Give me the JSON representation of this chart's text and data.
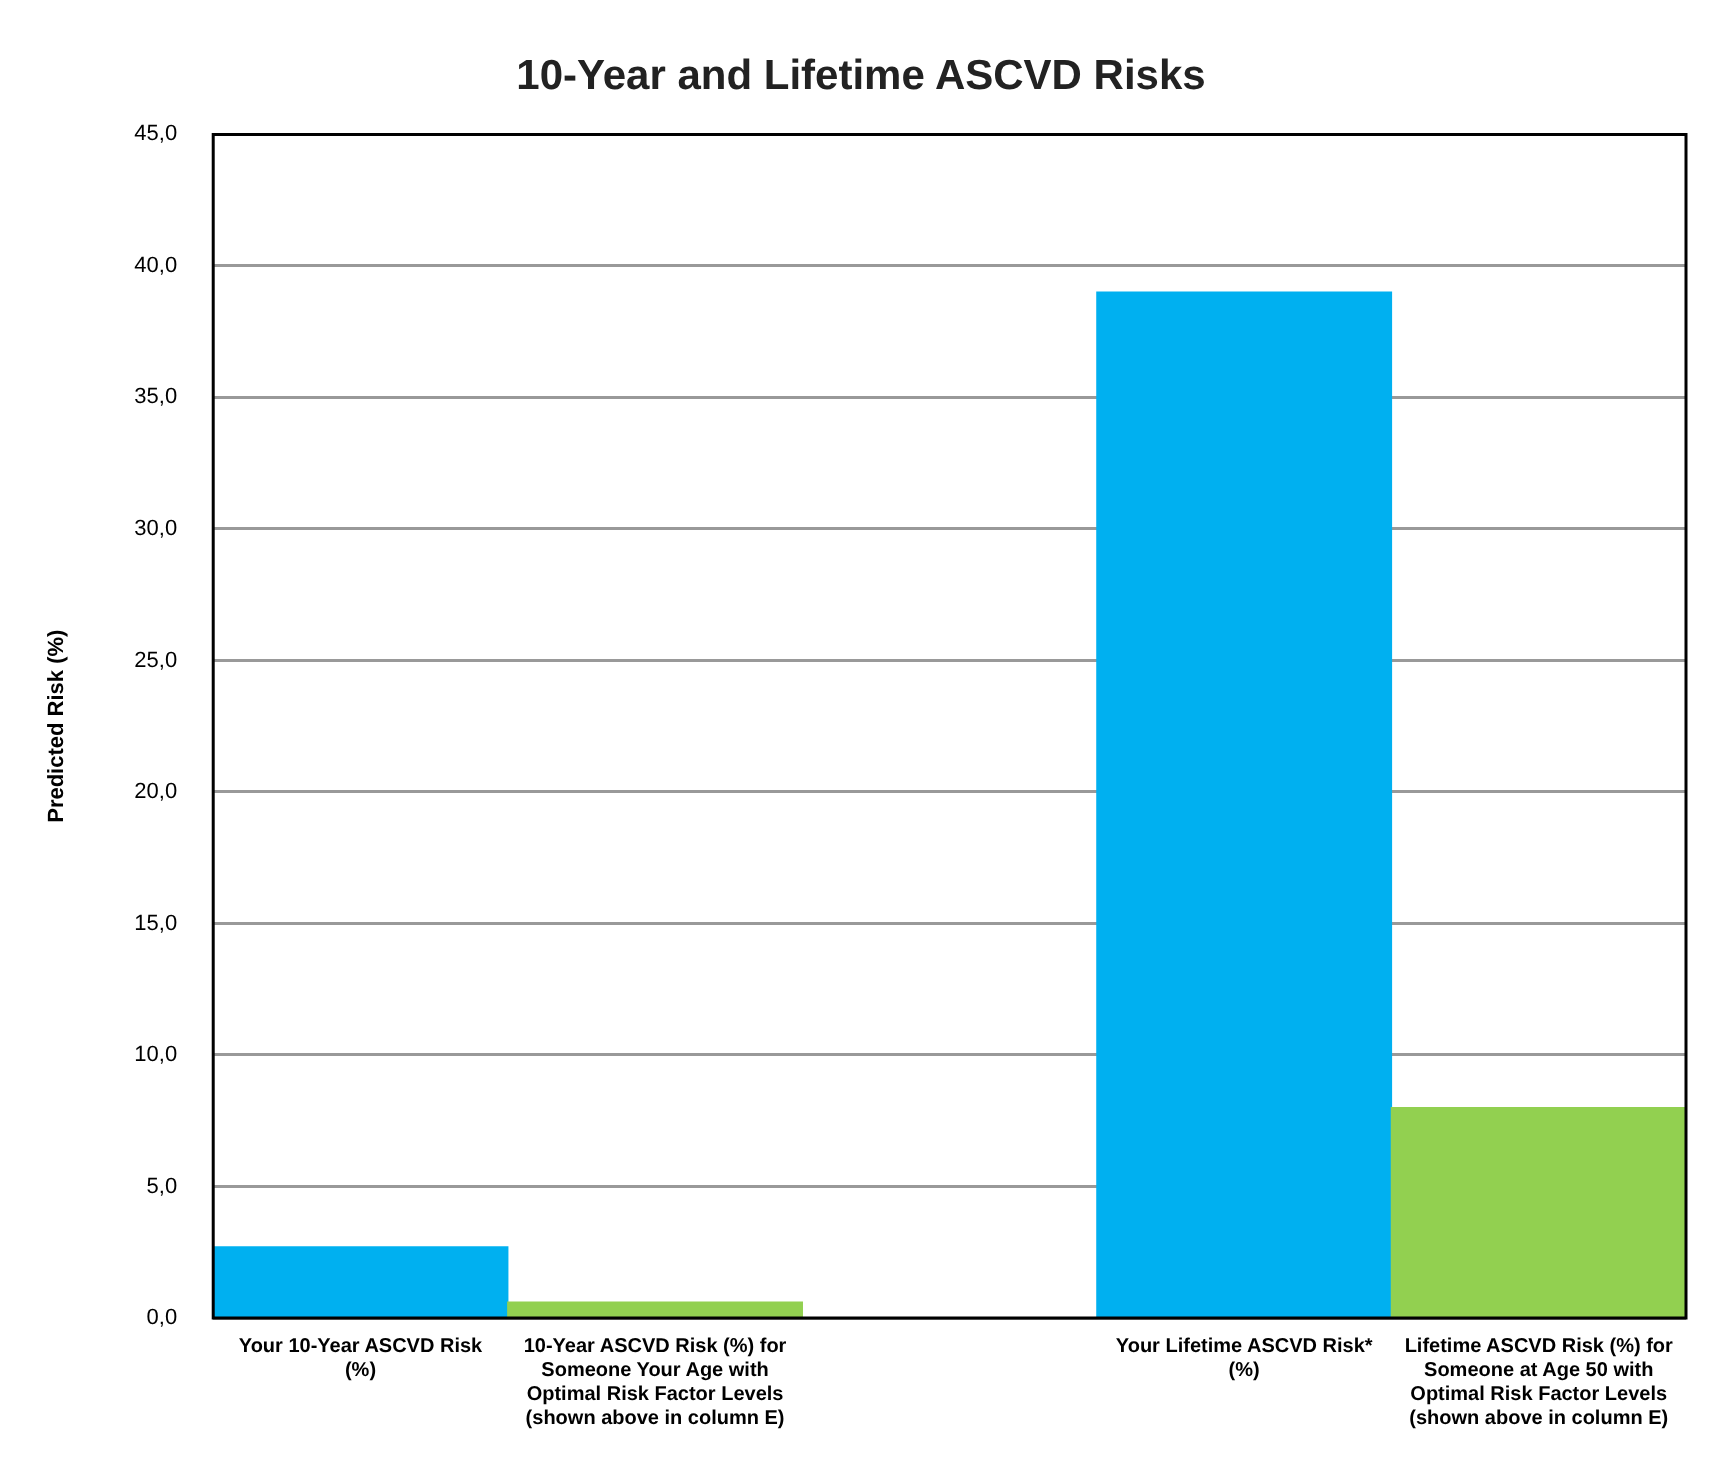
{
  "chart_data": {
    "type": "bar",
    "title": "10-Year and Lifetime ASCVD Risks",
    "ylabel": "Predicted Risk (%)",
    "categories": [
      "Your 10-Year ASCVD Risk (%)",
      "10-Year ASCVD Risk (%) for Someone Your Age with Optimal Risk Factor Levels (shown above in column E)",
      null,
      "Your Lifetime ASCVD Risk* (%)",
      "Lifetime ASCVD Risk (%) for Someone at Age 50 with Optimal Risk Factor Levels (shown above in column E)"
    ],
    "values": [
      2.7,
      0.6,
      null,
      39.0,
      8.0
    ],
    "colors": [
      "#00b0f0",
      "#92d050",
      "#00b0f0",
      "#00b0f0",
      "#92d050"
    ],
    "ylim": [
      0,
      45
    ],
    "yticks": [
      {
        "value": 0,
        "label": "0,0"
      },
      {
        "value": 5,
        "label": "5,0"
      },
      {
        "value": 10,
        "label": "10,0"
      },
      {
        "value": 15,
        "label": "15,0"
      },
      {
        "value": 20,
        "label": "20,0"
      },
      {
        "value": 25,
        "label": "25,0"
      },
      {
        "value": 30,
        "label": "30,0"
      },
      {
        "value": 35,
        "label": "35,0"
      },
      {
        "value": 40,
        "label": "40,0"
      },
      {
        "value": 45,
        "label": "45,0"
      }
    ],
    "grid": "y",
    "legend": false
  }
}
